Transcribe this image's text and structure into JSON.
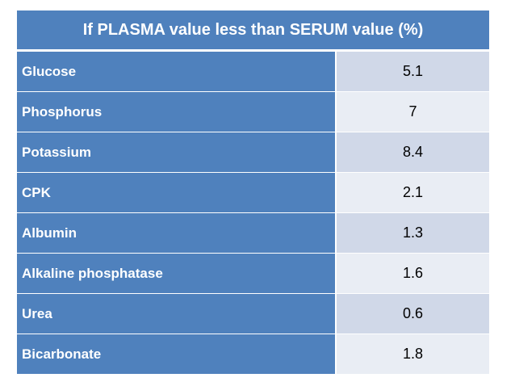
{
  "table": {
    "title": "If PLASMA value less than SERUM value (%)",
    "rows": [
      {
        "name": "Glucose",
        "value": "5.1"
      },
      {
        "name": "Phosphorus",
        "value": "7"
      },
      {
        "name": "Potassium",
        "value": "8.4"
      },
      {
        "name": "CPK",
        "value": "2.1"
      },
      {
        "name": "Albumin",
        "value": "1.3"
      },
      {
        "name": "Alkaline phosphatase",
        "value": "1.6"
      },
      {
        "name": "Urea",
        "value": "0.6"
      },
      {
        "name": "Bicarbonate",
        "value": "1.8"
      }
    ]
  },
  "colors": {
    "header_bg": "#4f81bd",
    "name_cell_bg": "#4f81bd",
    "value_band_dark": "#d0d8e8",
    "value_band_light": "#e9edf4",
    "header_text": "#ffffff"
  }
}
